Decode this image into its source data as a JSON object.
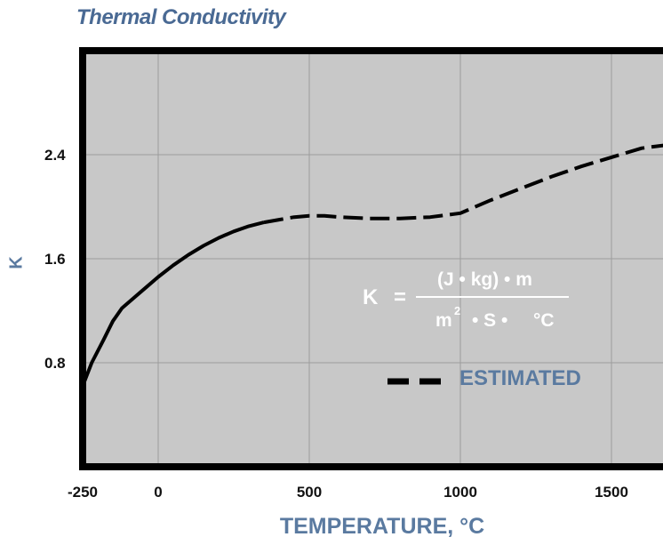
{
  "chart_data": {
    "type": "line",
    "title": "Thermal Conductivity",
    "xlabel": "TEMPERATURE, °C",
    "ylabel": "K",
    "xlim": [
      -250,
      1750
    ],
    "ylim": [
      0,
      3.2
    ],
    "x_ticks": [
      -250,
      0,
      500,
      1000,
      1500
    ],
    "y_ticks": [
      0.8,
      1.6,
      2.4
    ],
    "grid": true,
    "series": [
      {
        "style": "solid",
        "x": [
          -250,
          -220,
          -180,
          -150,
          -120,
          -80,
          -40,
          0,
          50,
          100,
          150,
          200,
          250,
          300,
          350
        ],
        "y": [
          0.62,
          0.8,
          0.98,
          1.12,
          1.22,
          1.3,
          1.38,
          1.46,
          1.55,
          1.63,
          1.7,
          1.76,
          1.81,
          1.85,
          1.88
        ]
      },
      {
        "style": "dashed",
        "x": [
          350,
          400,
          450,
          500,
          550,
          600,
          700,
          800,
          900,
          1000,
          1100,
          1200,
          1300,
          1400,
          1500,
          1600,
          1700
        ],
        "y": [
          1.88,
          1.9,
          1.92,
          1.93,
          1.93,
          1.92,
          1.91,
          1.91,
          1.92,
          1.95,
          2.05,
          2.14,
          2.23,
          2.31,
          2.38,
          2.45,
          2.48
        ]
      }
    ],
    "legend": {
      "label": "ESTIMATED",
      "style": "dashed",
      "placement": "lower-right"
    },
    "annotation": {
      "lhs": "K",
      "equals": "=",
      "numerator": "(J • kg) • m",
      "denominator_m": "m",
      "denominator_exp": "2",
      "denominator_rest": "• S •",
      "denominator_unit": "°C"
    }
  },
  "colors": {
    "plot_background": "#c8c8c8",
    "frame": "#000000",
    "grid": "#9c9c9c",
    "curve": "#000000",
    "title": "#4a6a94",
    "label": "#5a7aa0"
  }
}
